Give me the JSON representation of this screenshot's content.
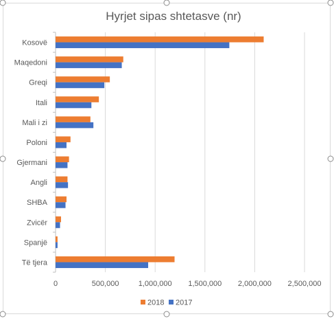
{
  "chart_data": {
    "type": "bar",
    "orientation": "horizontal",
    "title": "Hyrjet sipas shtetasve (nr)",
    "categories": [
      "Kosovë",
      "Maqedoni",
      "Greqi",
      "Itali",
      "Mali i zi",
      "Poloni",
      "Gjermani",
      "Angli",
      "SHBA",
      "Zvicër",
      "Spanjë",
      "Të tjera"
    ],
    "series": [
      {
        "name": "2018",
        "color": "#ED7D31",
        "values": [
          2090000,
          680000,
          545000,
          435000,
          350000,
          150000,
          135000,
          120000,
          110000,
          55000,
          20000,
          1195000
        ]
      },
      {
        "name": "2017",
        "color": "#4472C4",
        "values": [
          1745000,
          665000,
          490000,
          360000,
          380000,
          110000,
          120000,
          125000,
          100000,
          45000,
          20000,
          930000
        ]
      }
    ],
    "xlim": [
      0,
      2500000
    ],
    "xticks": [
      0,
      500000,
      1000000,
      1500000,
      2000000,
      2500000
    ],
    "xtick_labels": [
      "0",
      "500,000",
      "1,000,000",
      "1,500,000",
      "2,000,000",
      "2,500,000"
    ],
    "grid": true,
    "legend_position": "bottom"
  }
}
